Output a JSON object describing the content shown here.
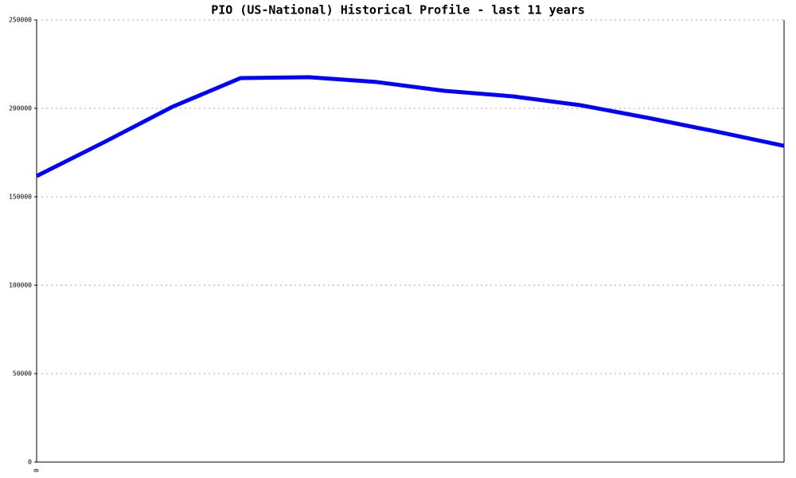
{
  "chart_data": {
    "type": "line",
    "title": "PIO (US-National) Historical Profile - last 11 years",
    "categories": [
      "0",
      null,
      null,
      null,
      null,
      null,
      null,
      null,
      null,
      null,
      null,
      null
    ],
    "values": [
      161700,
      181000,
      200900,
      217100,
      217600,
      214900,
      209900,
      206800,
      201800,
      194600,
      186900,
      178800
    ],
    "color": "#0000ff",
    "ylim": [
      0,
      250000
    ],
    "yticks": [
      0,
      50000,
      100000,
      150000,
      200000,
      250000
    ],
    "grid": true
  }
}
